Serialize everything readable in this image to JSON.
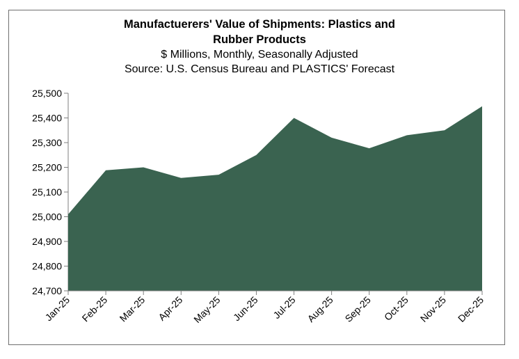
{
  "chart_data": {
    "type": "area",
    "title_line1": "Manufactuerers' Value of Shipments: Plastics and",
    "title_line2": "Rubber Products",
    "subtitle": "$ Millions, Monthly, Seasonally Adjusted",
    "source": "Source: U.S. Census Bureau and PLASTICS' Forecast",
    "categories": [
      "Jan-25",
      "Feb-25",
      "Mar-25",
      "Apr-25",
      "May-25",
      "Jun-25",
      "Jul-25",
      "Aug-25",
      "Sep-25",
      "Oct-25",
      "Nov-25",
      "Dec-25"
    ],
    "values": [
      25010,
      25188,
      25200,
      25157,
      25170,
      25250,
      25400,
      25320,
      25277,
      25330,
      25350,
      25447
    ],
    "ylim": [
      24700,
      25500
    ],
    "yticks": [
      24700,
      24800,
      24900,
      25000,
      25100,
      25200,
      25300,
      25400,
      25500
    ],
    "ytick_labels": [
      "24,700",
      "24,800",
      "24,900",
      "25,000",
      "25,100",
      "25,200",
      "25,300",
      "25,400",
      "25,500"
    ],
    "xlabel": "",
    "ylabel": "",
    "fill_color": "#3a6350",
    "grid": false,
    "legend": "none"
  }
}
